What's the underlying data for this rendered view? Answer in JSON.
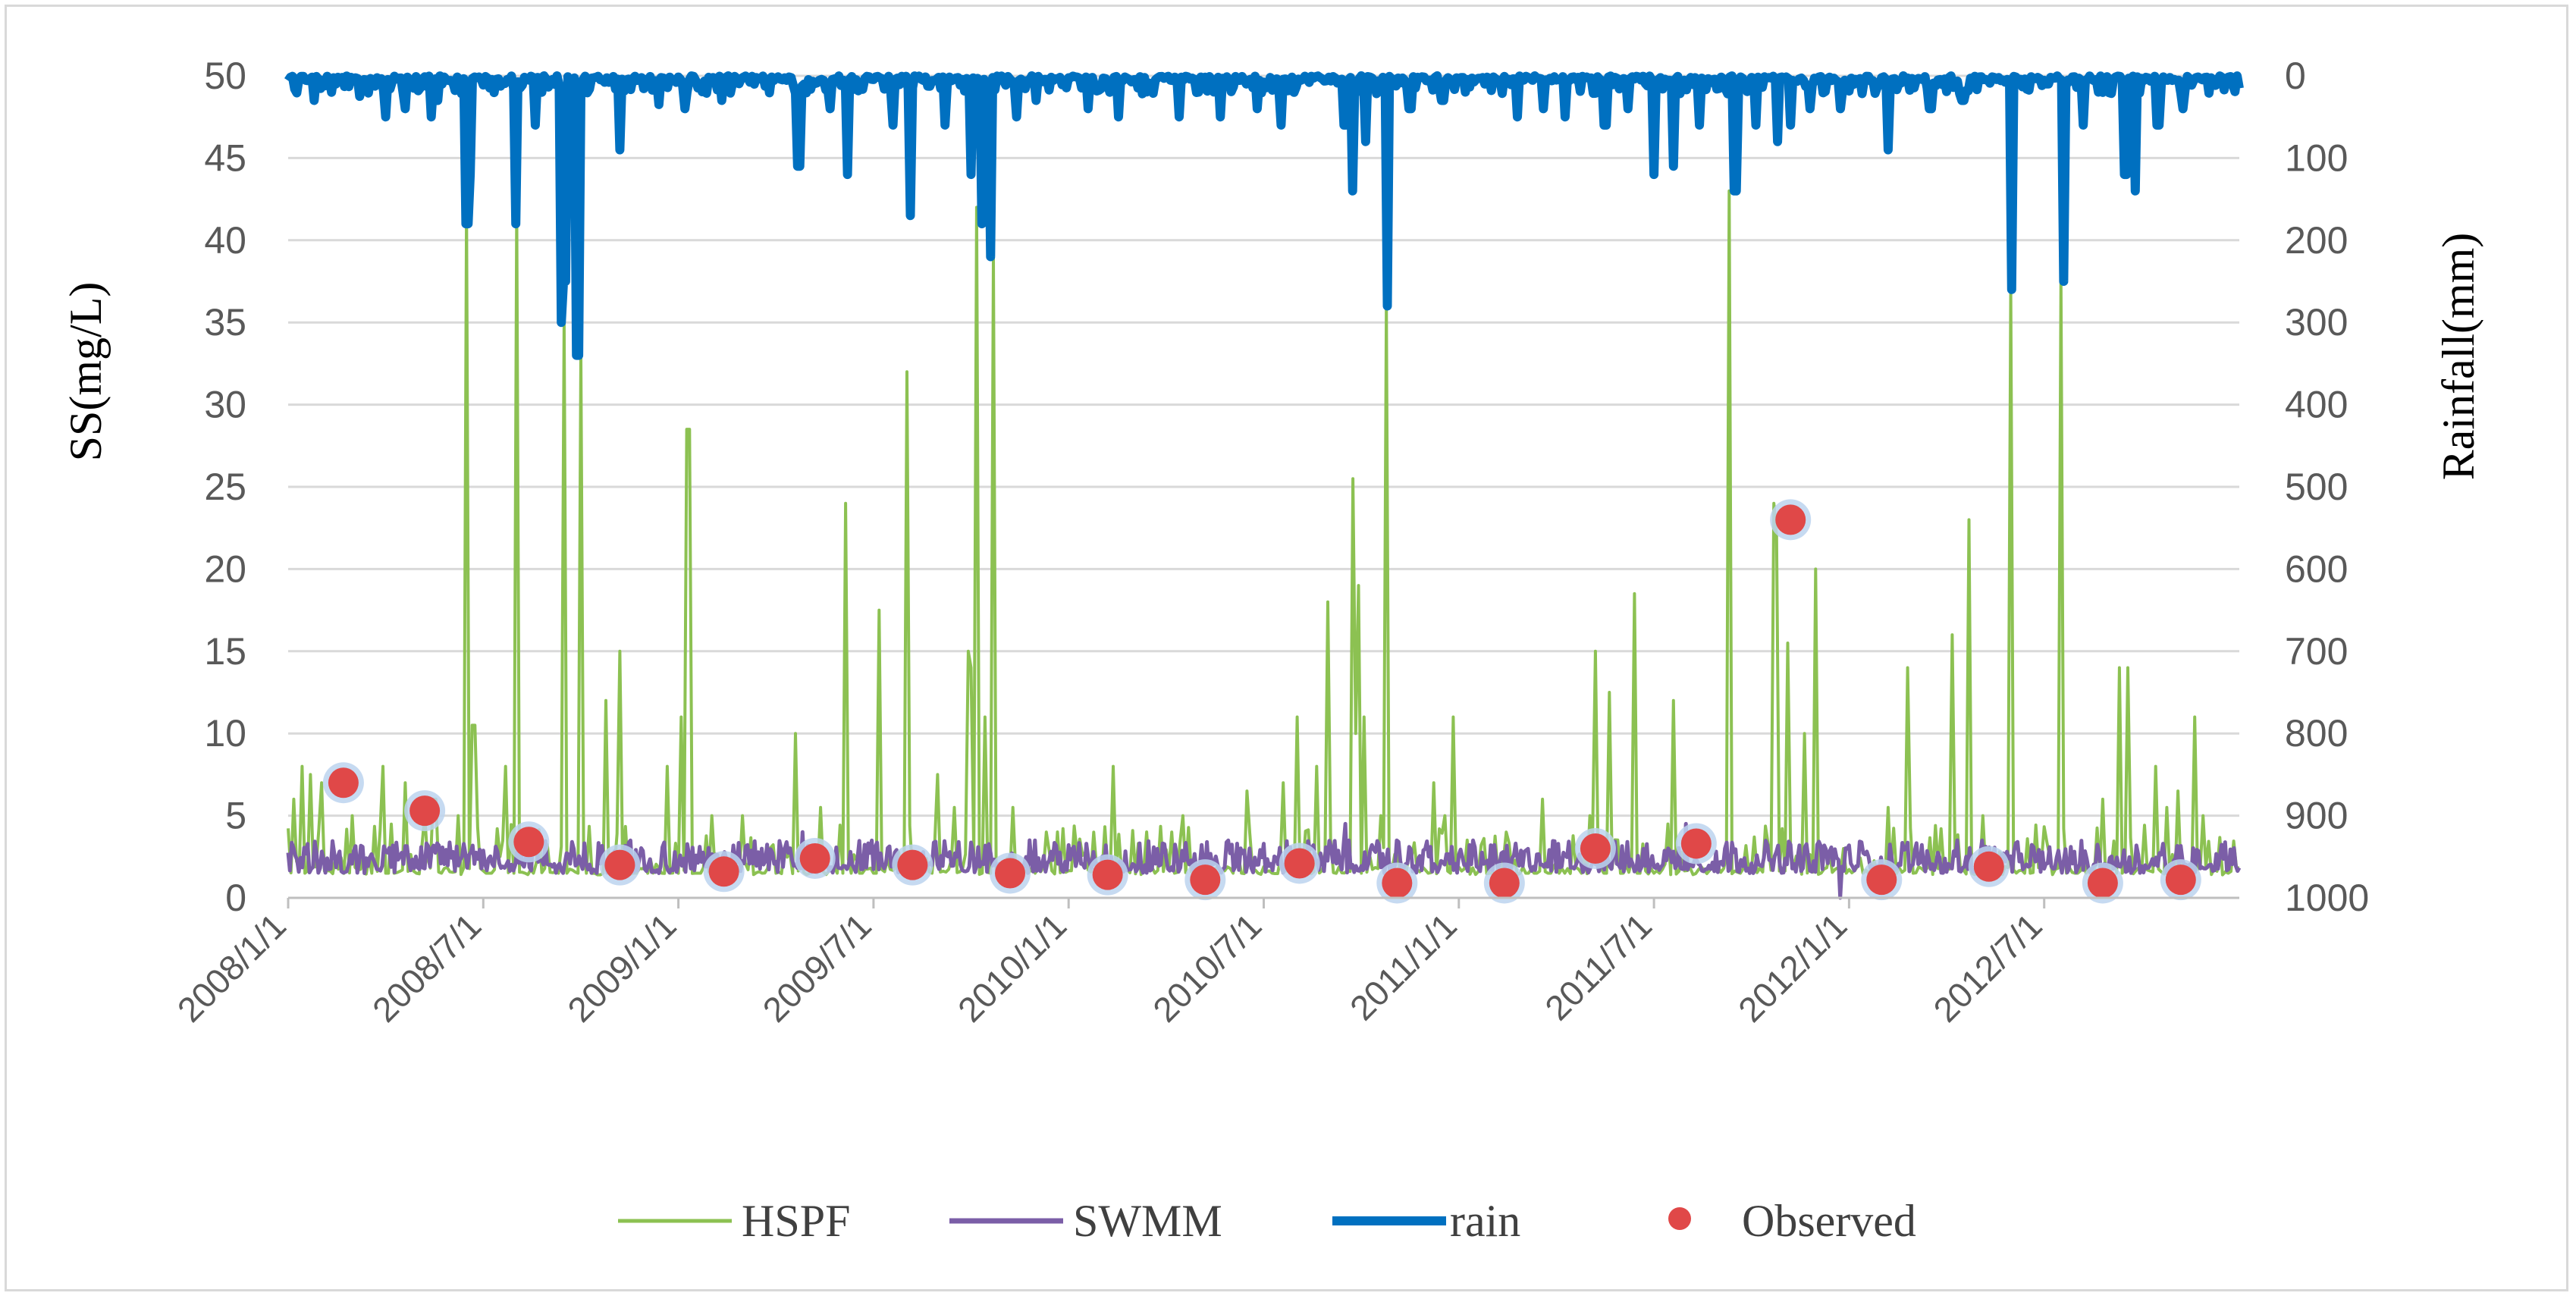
{
  "chart_data": {
    "type": "line",
    "title": "",
    "ylabel": "SS(mg/L)",
    "y2label": "Rainfall(mm)",
    "xlabel": "",
    "ylim": [
      0,
      50
    ],
    "y2lim": [
      0,
      1000
    ],
    "y2_inverted": true,
    "yticks": [
      "0",
      "5",
      "10",
      "15",
      "20",
      "25",
      "30",
      "35",
      "40",
      "45",
      "50"
    ],
    "y2ticks": [
      "0",
      "100",
      "200",
      "300",
      "400",
      "500",
      "600",
      "700",
      "800",
      "900",
      "1000"
    ],
    "xrange_months": [
      0,
      60
    ],
    "xticks": [
      {
        "label": "2008/1/1",
        "month": 0
      },
      {
        "label": "2008/7/1",
        "month": 6
      },
      {
        "label": "2009/1/1",
        "month": 12
      },
      {
        "label": "2009/7/1",
        "month": 18
      },
      {
        "label": "2010/1/1",
        "month": 24
      },
      {
        "label": "2010/7/1",
        "month": 30
      },
      {
        "label": "2011/1/1",
        "month": 36
      },
      {
        "label": "2011/7/1",
        "month": 42
      },
      {
        "label": "2012/1/1",
        "month": 48
      },
      {
        "label": "2012/7/1",
        "month": 54
      }
    ],
    "grid": "horizontal",
    "legend_position": "bottom",
    "colors": {
      "HSPF": "#8cc152",
      "SWMM": "#7b5ea7",
      "rain": "#0070c0",
      "Observed": "#e04848",
      "grid": "#d9d9d9"
    },
    "series": [
      {
        "name": "HSPF",
        "type": "line",
        "axis": "left",
        "peaks": [
          [
            0.2,
            6
          ],
          [
            0.4,
            8
          ],
          [
            0.7,
            7.5
          ],
          [
            1.0,
            7
          ],
          [
            1.5,
            6
          ],
          [
            2.0,
            5
          ],
          [
            2.9,
            8
          ],
          [
            3.6,
            7
          ],
          [
            4.2,
            5
          ],
          [
            4.5,
            6
          ],
          [
            5.2,
            5
          ],
          [
            5.5,
            42
          ],
          [
            5.7,
            10.5
          ],
          [
            7.0,
            42
          ],
          [
            6.7,
            8
          ],
          [
            8.5,
            35
          ],
          [
            9.0,
            33
          ],
          [
            9.8,
            12
          ],
          [
            10.2,
            15
          ],
          [
            11.7,
            8
          ],
          [
            12.1,
            11
          ],
          [
            12.3,
            28.5
          ],
          [
            13.0,
            5
          ],
          [
            14.0,
            5
          ],
          [
            15.6,
            10
          ],
          [
            16.4,
            5.5
          ],
          [
            17.1,
            24
          ],
          [
            18.2,
            17.5
          ],
          [
            19.0,
            32
          ],
          [
            20.0,
            7.5
          ],
          [
            20.5,
            5.5
          ],
          [
            20.9,
            15
          ],
          [
            21.0,
            14
          ],
          [
            21.2,
            42
          ],
          [
            21.4,
            11
          ],
          [
            21.7,
            39
          ],
          [
            22.3,
            5.5
          ],
          [
            23.3,
            4
          ],
          [
            25.4,
            8
          ],
          [
            27.2,
            4
          ],
          [
            27.5,
            5
          ],
          [
            29.5,
            6.5
          ],
          [
            30.6,
            7
          ],
          [
            31.0,
            11
          ],
          [
            31.6,
            8
          ],
          [
            32.0,
            18
          ],
          [
            32.7,
            25.5
          ],
          [
            32.8,
            10
          ],
          [
            32.9,
            19
          ],
          [
            33.1,
            11
          ],
          [
            33.6,
            5
          ],
          [
            33.8,
            36
          ],
          [
            35.2,
            7
          ],
          [
            35.6,
            5
          ],
          [
            35.8,
            11
          ],
          [
            37.5,
            7
          ],
          [
            38.6,
            6
          ],
          [
            40.0,
            5
          ],
          [
            40.2,
            15
          ],
          [
            40.6,
            12.5
          ],
          [
            41.1,
            6
          ],
          [
            41.4,
            18.5
          ],
          [
            42.6,
            12
          ],
          [
            44.3,
            43
          ],
          [
            45.7,
            24
          ],
          [
            45.8,
            22
          ],
          [
            46.1,
            15.5
          ],
          [
            46.6,
            10
          ],
          [
            47.0,
            20
          ],
          [
            47.8,
            3
          ],
          [
            49.2,
            5.5
          ],
          [
            49.8,
            14
          ],
          [
            51.2,
            16
          ],
          [
            51.7,
            23
          ],
          [
            52.1,
            5
          ],
          [
            53.0,
            37
          ],
          [
            54.5,
            37.5
          ],
          [
            55.8,
            6
          ],
          [
            56.3,
            14
          ],
          [
            56.6,
            14
          ],
          [
            57.4,
            8
          ],
          [
            57.8,
            5.5
          ],
          [
            58.1,
            6.5
          ],
          [
            58.6,
            11
          ],
          [
            58.9,
            5
          ]
        ]
      },
      {
        "name": "SWMM",
        "type": "line",
        "axis": "left",
        "base": 1.5,
        "typical_max": 3.5,
        "peaks": [
          [
            15.8,
            4
          ],
          [
            22.8,
            3.5
          ],
          [
            32.5,
            4.5
          ],
          [
            43.0,
            4.5
          ],
          [
            47.7,
            0
          ]
        ]
      },
      {
        "name": "rain",
        "type": "line",
        "axis": "right",
        "peaks": [
          [
            0.8,
            30
          ],
          [
            1.3,
            20
          ],
          [
            2.2,
            25
          ],
          [
            3.0,
            50
          ],
          [
            3.6,
            40
          ],
          [
            4.4,
            50
          ],
          [
            4.6,
            30
          ],
          [
            5.5,
            180
          ],
          [
            5.6,
            120
          ],
          [
            7.0,
            180
          ],
          [
            7.6,
            60
          ],
          [
            8.4,
            300
          ],
          [
            8.5,
            250
          ],
          [
            8.9,
            340
          ],
          [
            10.2,
            90
          ],
          [
            11.4,
            35
          ],
          [
            12.2,
            40
          ],
          [
            13.3,
            30
          ],
          [
            15.7,
            110
          ],
          [
            16.7,
            40
          ],
          [
            17.2,
            120
          ],
          [
            18.6,
            60
          ],
          [
            19.1,
            170
          ],
          [
            20.2,
            60
          ],
          [
            21.0,
            120
          ],
          [
            21.3,
            180
          ],
          [
            21.6,
            220
          ],
          [
            22.4,
            50
          ],
          [
            23.0,
            30
          ],
          [
            24.6,
            40
          ],
          [
            25.5,
            50
          ],
          [
            27.4,
            50
          ],
          [
            28.7,
            50
          ],
          [
            29.8,
            40
          ],
          [
            30.5,
            60
          ],
          [
            32.5,
            60
          ],
          [
            32.7,
            140
          ],
          [
            33.1,
            80
          ],
          [
            33.8,
            280
          ],
          [
            34.5,
            40
          ],
          [
            35.5,
            30
          ],
          [
            37.8,
            50
          ],
          [
            38.6,
            40
          ],
          [
            39.3,
            50
          ],
          [
            40.5,
            60
          ],
          [
            41.2,
            40
          ],
          [
            42.0,
            120
          ],
          [
            42.6,
            110
          ],
          [
            43.4,
            60
          ],
          [
            44.5,
            140
          ],
          [
            45.1,
            60
          ],
          [
            45.8,
            80
          ],
          [
            46.2,
            60
          ],
          [
            46.8,
            40
          ],
          [
            47.7,
            40
          ],
          [
            49.2,
            90
          ],
          [
            50.5,
            40
          ],
          [
            51.5,
            30
          ],
          [
            53.0,
            260
          ],
          [
            54.6,
            250
          ],
          [
            55.2,
            60
          ],
          [
            56.5,
            120
          ],
          [
            56.8,
            140
          ],
          [
            57.5,
            60
          ],
          [
            58.3,
            40
          ]
        ]
      },
      {
        "name": "Observed",
        "type": "scatter",
        "axis": "left",
        "points": [
          [
            1.7,
            7
          ],
          [
            4.2,
            5.3
          ],
          [
            7.4,
            3.4
          ],
          [
            10.2,
            2.0
          ],
          [
            13.4,
            1.6
          ],
          [
            16.2,
            2.4
          ],
          [
            19.2,
            2.0
          ],
          [
            22.2,
            1.5
          ],
          [
            25.2,
            1.4
          ],
          [
            28.2,
            1.1
          ],
          [
            31.1,
            2.1
          ],
          [
            34.1,
            0.9
          ],
          [
            37.4,
            0.9
          ],
          [
            40.2,
            3.0
          ],
          [
            43.3,
            3.3
          ],
          [
            46.2,
            23
          ],
          [
            49.0,
            1.1
          ],
          [
            52.3,
            1.9
          ],
          [
            55.8,
            0.9
          ],
          [
            58.2,
            1.1
          ]
        ]
      }
    ]
  },
  "legend": {
    "items": [
      {
        "label": "HSPF"
      },
      {
        "label": "SWMM"
      },
      {
        "label": "rain"
      },
      {
        "label": "Observed"
      }
    ]
  }
}
